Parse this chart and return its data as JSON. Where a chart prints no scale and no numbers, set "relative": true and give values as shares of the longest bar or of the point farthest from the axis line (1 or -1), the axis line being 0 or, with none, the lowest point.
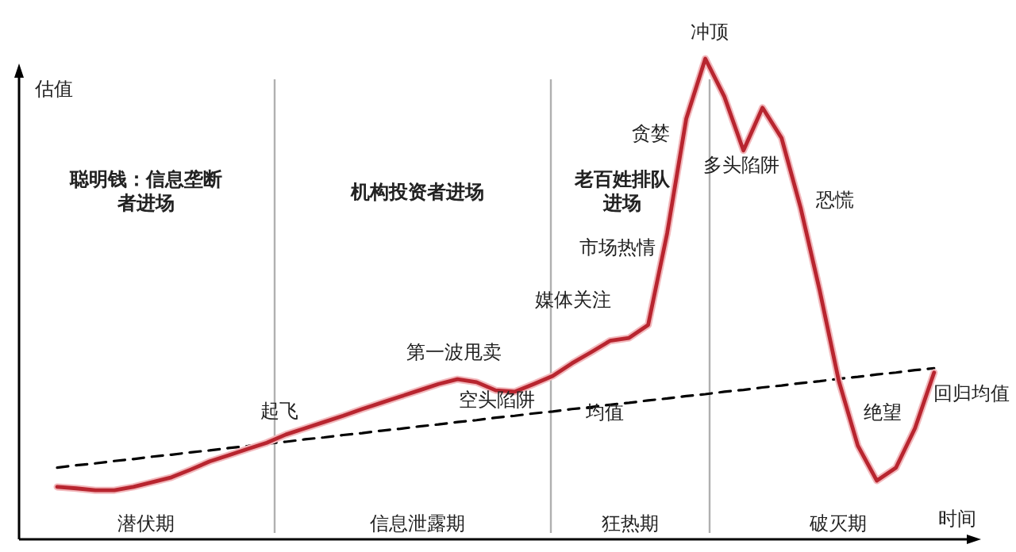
{
  "chart_data": {
    "type": "line",
    "relative": true,
    "xlabel": "时间",
    "ylabel": "估值",
    "categories": [
      null,
      null,
      null,
      null,
      null,
      null,
      null,
      null,
      null,
      null,
      null,
      null,
      null,
      null,
      null,
      null,
      null,
      null,
      null,
      null,
      null,
      null,
      null,
      null,
      null,
      null,
      null,
      null,
      null,
      null,
      null,
      null,
      null,
      null,
      null,
      null,
      null,
      null,
      null,
      null,
      null,
      null,
      null,
      null,
      null,
      null,
      null
    ],
    "series": [
      {
        "color": "#b8252f",
        "values": [
          0.109,
          0.106,
          0.102,
          0.102,
          0.109,
          0.119,
          0.129,
          0.145,
          0.162,
          0.175,
          0.188,
          0.201,
          0.218,
          0.231,
          0.244,
          0.257,
          0.271,
          0.284,
          0.297,
          0.31,
          0.323,
          0.333,
          0.327,
          0.31,
          0.307,
          0.323,
          0.34,
          0.366,
          0.389,
          0.413,
          0.419,
          0.446,
          0.637,
          0.875,
          1,
          0.921,
          0.809,
          0.898,
          0.835,
          0.69,
          0.518,
          0.33,
          0.195,
          0.122,
          0.149,
          0.231,
          0.347
        ]
      },
      {
        "type": "line",
        "color": "#000000",
        "line_style": "dashed",
        "values": [
          0.149,
          0.154,
          0.158,
          0.163,
          0.167,
          0.172,
          0.176,
          0.181,
          0.185,
          0.19,
          0.194,
          0.199,
          0.203,
          0.208,
          0.212,
          0.217,
          0.221,
          0.226,
          0.23,
          0.235,
          0.239,
          0.244,
          0.248,
          0.253,
          0.257,
          0.262,
          0.266,
          0.271,
          0.275,
          0.28,
          0.284,
          0.289,
          0.293,
          0.298,
          0.302,
          0.307,
          0.311,
          0.316,
          0.32,
          0.325,
          0.329,
          0.334,
          0.338,
          0.343,
          0.347,
          0.352,
          0.356
        ]
      }
    ],
    "annotations": [
      "潜伏期",
      "信息泄露期",
      "狂热期",
      "破灭期",
      "聪明钱：信息垄断者进场",
      "机构投资者进场",
      "老百姓排队进场",
      "起飞",
      "第一波甩卖",
      "空头陷阱",
      "均值",
      "媒体关注",
      "市场热情",
      "贪婪",
      "冲顶",
      "多头陷阱",
      "恐慌",
      "绝望",
      "回归均值"
    ],
    "grid": false
  }
}
